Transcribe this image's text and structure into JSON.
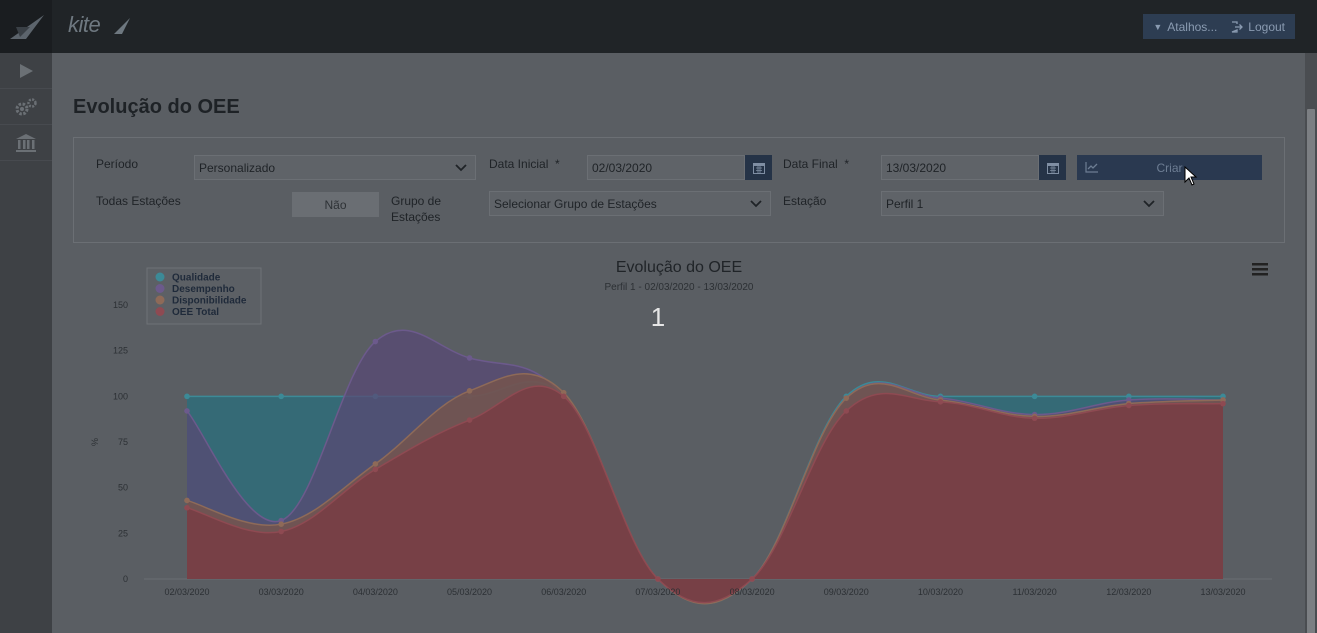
{
  "topbar": {
    "logo": "kite",
    "shortcuts_label": "Atalhos...",
    "logout_label": "Logout"
  },
  "page": {
    "title": "Evolução do OEE"
  },
  "filters": {
    "periodo_label": "Período",
    "periodo_value": "Personalizado",
    "data_inicial_label": "Data Inicial",
    "data_inicial_value": "02/03/2020",
    "data_final_label": "Data Final",
    "data_final_value": "13/03/2020",
    "required_mark": "*",
    "criar_label": "Criar",
    "todas_estacoes_label": "Todas Estações",
    "todas_estacoes_value": "Não",
    "grupo_label_line1": "Grupo de",
    "grupo_label_line2": "Estações",
    "grupo_value": "Selecionar Grupo de Estações",
    "estacao_label": "Estação",
    "estacao_value": "Perfil 1"
  },
  "colors": {
    "qualidade": "#2a6f7c",
    "desempenho": "#584a74",
    "disponibilidade": "#7a5648",
    "oee_total": "#7a3a42"
  },
  "chart_data": {
    "type": "area",
    "title": "Evolução do OEE",
    "subtitle": "Perfil 1 - 02/03/2020 - 13/03/2020",
    "overlay_label": "1",
    "ylabel": "%",
    "ylim": [
      0,
      150
    ],
    "yticks": [
      0,
      25,
      50,
      75,
      100,
      125,
      150
    ],
    "legend_position": "top-left",
    "categories": [
      "02/03/2020",
      "03/03/2020",
      "04/03/2020",
      "05/03/2020",
      "06/03/2020",
      "07/03/2020",
      "08/03/2020",
      "09/03/2020",
      "10/03/2020",
      "11/03/2020",
      "12/03/2020",
      "13/03/2020"
    ],
    "series": [
      {
        "name": "Qualidade",
        "values": [
          100,
          100,
          100,
          100,
          100,
          0,
          0,
          100,
          100,
          100,
          100,
          100
        ]
      },
      {
        "name": "Desempenho",
        "values": [
          92,
          32,
          130,
          121,
          100,
          0,
          0,
          99,
          99,
          90,
          98,
          98
        ]
      },
      {
        "name": "Disponibilidade",
        "values": [
          43,
          30,
          63,
          103,
          102,
          0,
          0,
          99,
          98,
          89,
          96,
          98
        ]
      },
      {
        "name": "OEE Total",
        "values": [
          39,
          26,
          60,
          87,
          100,
          0,
          0,
          92,
          97,
          88,
          95,
          96
        ]
      }
    ]
  }
}
